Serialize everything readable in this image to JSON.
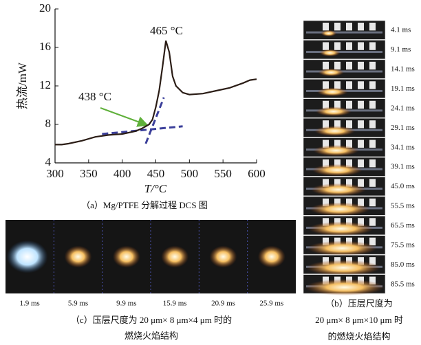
{
  "chart_data": {
    "type": "line",
    "x": [
      300,
      310,
      320,
      340,
      360,
      380,
      400,
      420,
      430,
      440,
      445,
      450,
      455,
      460,
      465,
      470,
      475,
      480,
      490,
      500,
      520,
      540,
      560,
      580,
      590,
      600
    ],
    "series": [
      {
        "color": "#2b1d16",
        "values": [
          5.9,
          5.9,
          6.0,
          6.3,
          6.7,
          6.9,
          7.0,
          7.3,
          7.6,
          8.0,
          8.5,
          9.8,
          11.5,
          14.0,
          16.7,
          15.5,
          13.0,
          12.0,
          11.3,
          11.1,
          11.2,
          11.5,
          11.8,
          12.3,
          12.6,
          12.7
        ]
      }
    ],
    "tangent_lines": {
      "color": "#3b3f9a",
      "lines": [
        {
          "x": [
            370,
            490
          ],
          "y": [
            7.0,
            7.8
          ]
        },
        {
          "x": [
            435,
            462
          ],
          "y": [
            6.0,
            10.8
          ]
        }
      ]
    },
    "xlim": [
      300,
      600
    ],
    "ylim": [
      4,
      20
    ],
    "xticks": [
      300,
      350,
      400,
      450,
      500,
      550,
      600
    ],
    "yticks": [
      4,
      8,
      12,
      16,
      20
    ],
    "xlabel": "T/°C",
    "ylabel": "热流/mW",
    "annotations": [
      "465 °C",
      "438 °C"
    ],
    "caption": "（a）Mg/PTFE 分解过程 DCS 图"
  },
  "panels": {
    "b": {
      "frames": [
        "4.1 ms",
        "9.1 ms",
        "14.1 ms",
        "19.1 ms",
        "24.1 ms",
        "29.1 ms",
        "34.1 ms",
        "39.1 ms",
        "45.0 ms",
        "55.5 ms",
        "65.5 ms",
        "75.5 ms",
        "85.0 ms",
        "85.5 ms"
      ],
      "caption": [
        "（b）压层尺度为",
        "20 μm× 8 μm×10 μm 时",
        "的燃烧火焰结构"
      ]
    },
    "c": {
      "frames": [
        "1.9 ms",
        "5.9 ms",
        "9.9 ms",
        "15.9 ms",
        "20.9 ms",
        "25.9 ms"
      ],
      "caption": [
        "（c）压层尺度为 20 μm× 8 μm×4 μm 时的",
        "燃烧火焰结构"
      ]
    }
  }
}
